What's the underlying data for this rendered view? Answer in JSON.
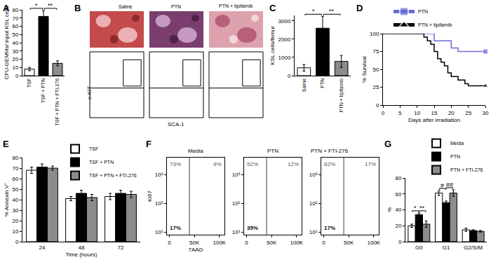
{
  "chart_data": [
    {
      "panel": "A",
      "type": "bar",
      "categories": [
        "TSF",
        "TSF + PTN",
        "TSF + PTN + FTI-276"
      ],
      "values": [
        8,
        72,
        15
      ],
      "errors": [
        2,
        7,
        3
      ],
      "colors": [
        "#ffffff",
        "#000000",
        "#8c8c8c"
      ],
      "y_label": "CFU-GEMMs/ input KSL cells",
      "ylim": [
        0,
        80
      ],
      "yticks": [
        0,
        10,
        20,
        30,
        40,
        50,
        60,
        70,
        80
      ],
      "significance": [
        {
          "text": "*",
          "from": "TSF",
          "to": "TSF + PTN"
        },
        {
          "text": "**",
          "from": "TSF + PTN",
          "to": "TSF + PTN + FTI-276"
        }
      ]
    },
    {
      "panel": "B",
      "type": "flow",
      "columns": [
        "Saline",
        "PTN",
        "PTN + tipifarnib"
      ],
      "x_label": "SCA-1",
      "y_label": "c-KIT",
      "tick_labels": false
    },
    {
      "panel": "C",
      "type": "bar",
      "categories": [
        "Saline",
        "PTN",
        "PTN + tipifarnib"
      ],
      "values": [
        430,
        2600,
        780
      ],
      "errors": [
        180,
        650,
        330
      ],
      "colors": [
        "#ffffff",
        "#000000",
        "#8c8c8c"
      ],
      "y_label": "KSL cells/femur",
      "ylim": [
        0,
        3300
      ],
      "yticks": [
        0,
        1000,
        2000,
        3000
      ],
      "significance": [
        {
          "text": "*",
          "from": "Saline",
          "to": "PTN"
        },
        {
          "text": "**",
          "from": "PTN",
          "to": "PTN + tipifarnib"
        }
      ]
    },
    {
      "panel": "D",
      "type": "line",
      "line_style": "step",
      "x_label": "Days after irradiation",
      "y_label": "% Survival",
      "xlim": [
        0,
        30
      ],
      "xticks": [
        0,
        5,
        10,
        15,
        20,
        25,
        30
      ],
      "ylim": [
        0,
        100
      ],
      "yticks": [
        0,
        25,
        50,
        75,
        100
      ],
      "legend": "top",
      "series": [
        {
          "name": "PTN",
          "color": "#6a6ad8",
          "marker": "square",
          "x": [
            0,
            15,
            20,
            22,
            30
          ],
          "values": [
            100,
            90,
            80,
            75,
            75
          ]
        },
        {
          "name": "PTN + tipifarnib",
          "color": "#000000",
          "marker": "triangle",
          "x": [
            0,
            12,
            13,
            14,
            15,
            16,
            17,
            18,
            19,
            20,
            22,
            24,
            25,
            30
          ],
          "values": [
            100,
            95,
            90,
            85,
            75,
            65,
            60,
            55,
            45,
            40,
            35,
            30,
            27,
            27
          ]
        }
      ]
    },
    {
      "panel": "E",
      "type": "bar",
      "categories": [
        "24",
        "48",
        "72"
      ],
      "x_label": "Time (hours)",
      "y_label": "% Annexin V⁺",
      "ylim": [
        0,
        80
      ],
      "yticks": [
        0,
        10,
        20,
        30,
        40,
        50,
        60,
        70,
        80
      ],
      "legend": "upper right",
      "series": [
        {
          "name": "TSF",
          "color": "#ffffff",
          "values": [
            68,
            41,
            43
          ],
          "errors": [
            3,
            2,
            3
          ]
        },
        {
          "name": "TSF + PTN",
          "color": "#000000",
          "values": [
            71,
            46,
            46
          ],
          "errors": [
            3,
            3,
            3
          ]
        },
        {
          "name": "TSF + PTN + FTI-276",
          "color": "#8c8c8c",
          "values": [
            70,
            42,
            45
          ],
          "errors": [
            2,
            3,
            3
          ]
        }
      ]
    },
    {
      "panel": "F",
      "type": "flow",
      "columns": [
        "Media",
        "PTN",
        "PTN + FTI-276"
      ],
      "x_label": "7AAD",
      "y_label": "Ki67",
      "log": "y",
      "xlim": [
        -5000,
        110000
      ],
      "xticks": [
        0,
        {
          "value": 50000,
          "label": "50K"
        },
        {
          "value": 100000,
          "label": "100K"
        }
      ],
      "ylim": [
        8,
        4000
      ],
      "yticks": [
        {
          "value": 10,
          "label": "10¹"
        },
        {
          "value": 100,
          "label": "10²"
        },
        {
          "value": 1000,
          "label": "10³"
        }
      ],
      "gate": {
        "x": 40000,
        "y": 30
      },
      "quadrant_values": [
        [
          73,
          9,
          17
        ],
        [
          52,
          12,
          35
        ],
        [
          62,
          17,
          17
        ]
      ],
      "quadrant_labels": [
        [
          "73%",
          "9%",
          "17%"
        ],
        [
          "52%",
          "12%",
          "35%"
        ],
        [
          "62%",
          "17%",
          "17%"
        ]
      ]
    },
    {
      "panel": "G",
      "type": "bar",
      "categories": [
        "G0",
        "G1",
        "G2/S/M"
      ],
      "y_label": "%",
      "ylim": [
        0,
        80
      ],
      "yticks": [
        0,
        20,
        40,
        60,
        80
      ],
      "legend": "upper right",
      "series": [
        {
          "name": "Media",
          "color": "#ffffff",
          "values": [
            20,
            61,
            15
          ],
          "errors": [
            2,
            3,
            2
          ]
        },
        {
          "name": "PTN",
          "color": "#000000",
          "values": [
            34,
            49,
            14
          ],
          "errors": [
            2,
            2,
            1
          ]
        },
        {
          "name": "PTN + FTI-276",
          "color": "#8c8c8c",
          "values": [
            22,
            61,
            13
          ],
          "errors": [
            4,
            4,
            1
          ]
        }
      ],
      "significance": [
        {
          "text": "*",
          "category": "G0",
          "from": "Media",
          "to": "PTN"
        },
        {
          "text": "**",
          "category": "G0",
          "from": "PTN",
          "to": "PTN + FTI-276"
        },
        {
          "text": "#",
          "category": "G1",
          "from": "Media",
          "to": "PTN"
        },
        {
          "text": "##",
          "category": "G1",
          "from": "PTN",
          "to": "PTN + FTI-276"
        }
      ]
    }
  ]
}
